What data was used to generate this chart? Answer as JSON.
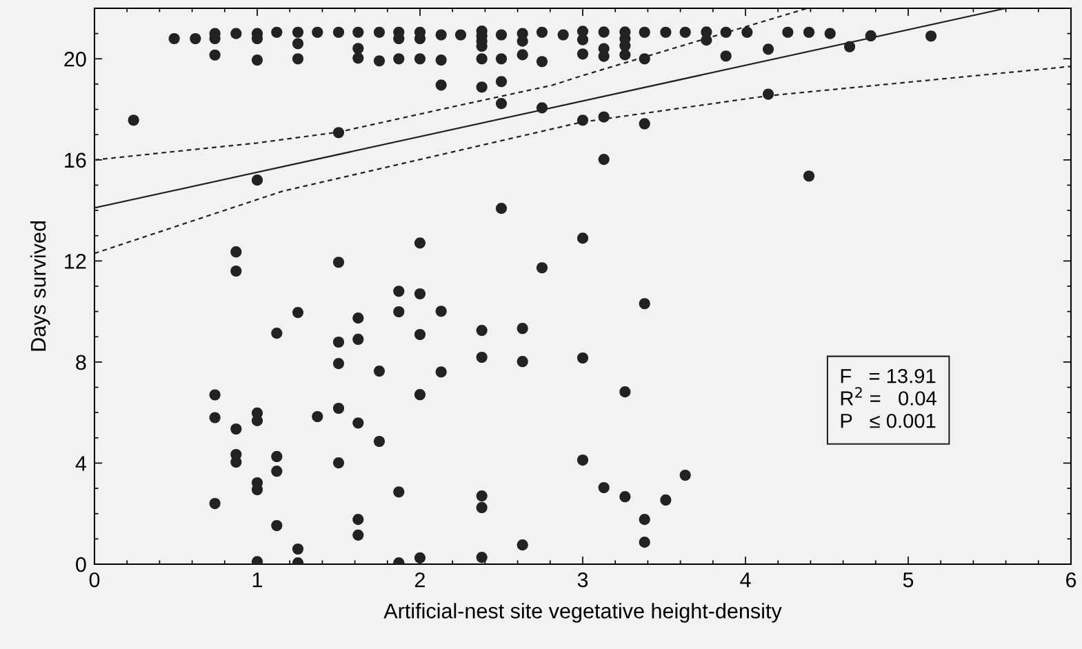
{
  "chart_data": {
    "type": "scatter",
    "xlabel": "Artificial-nest site vegetative height-density",
    "ylabel": "Days survived",
    "xlim": [
      0,
      6
    ],
    "xticks": [
      0,
      1,
      2,
      3,
      4,
      5,
      6
    ],
    "ylim": [
      0,
      22
    ],
    "yticks": [
      0,
      4,
      8,
      12,
      16,
      20
    ],
    "grid": false,
    "annotations": [
      "F   = 13.91",
      "R$^{2}$ =   0.04",
      "P   ≤ 0.001"
    ],
    "series": [
      {
        "marker": "circle",
        "color": "#222222",
        "x": [
          0.24,
          0.49,
          0.62,
          0.74,
          0.74,
          0.74,
          0.74,
          0.74,
          0.74,
          0.87,
          0.87,
          0.87,
          0.87,
          0.87,
          0.87,
          1.0,
          1.0,
          1.0,
          1.0,
          1.0,
          1.0,
          1.0,
          1.0,
          1.0,
          1.12,
          1.12,
          1.12,
          1.12,
          1.12,
          1.25,
          1.25,
          1.25,
          1.25,
          1.25,
          1.25,
          1.37,
          1.37,
          1.5,
          1.5,
          1.5,
          1.5,
          1.5,
          1.5,
          1.5,
          1.62,
          1.62,
          1.62,
          1.62,
          1.62,
          1.62,
          1.62,
          1.62,
          1.75,
          1.75,
          1.75,
          1.75,
          1.87,
          1.87,
          1.87,
          1.87,
          1.87,
          1.87,
          1.87,
          2.0,
          2.0,
          2.0,
          2.0,
          2.0,
          2.0,
          2.0,
          2.0,
          2.13,
          2.13,
          2.13,
          2.13,
          2.13,
          2.25,
          2.38,
          2.38,
          2.38,
          2.38,
          2.38,
          2.38,
          2.38,
          2.38,
          2.38,
          2.38,
          2.38,
          2.5,
          2.5,
          2.5,
          2.5,
          2.5,
          2.63,
          2.63,
          2.63,
          2.63,
          2.63,
          2.63,
          2.75,
          2.75,
          2.75,
          2.75,
          2.88,
          3.0,
          3.0,
          3.0,
          3.0,
          3.0,
          3.0,
          3.0,
          3.13,
          3.13,
          3.13,
          3.13,
          3.13,
          3.13,
          3.26,
          3.26,
          3.26,
          3.26,
          3.26,
          3.26,
          3.38,
          3.38,
          3.38,
          3.38,
          3.38,
          3.38,
          3.51,
          3.51,
          3.63,
          3.63,
          3.76,
          3.76,
          3.88,
          3.88,
          4.01,
          4.14,
          4.14,
          4.26,
          4.39,
          4.39,
          4.52,
          4.64,
          4.77,
          5.14
        ],
        "values": [
          17.57,
          20.8,
          20.8,
          21.0,
          20.8,
          20.15,
          6.7,
          5.8,
          2.4,
          21.0,
          12.36,
          11.6,
          5.35,
          4.34,
          4.04,
          21.0,
          20.8,
          19.95,
          15.2,
          5.98,
          5.68,
          3.22,
          2.95,
          0.1,
          21.05,
          9.14,
          4.26,
          3.68,
          1.53,
          21.05,
          20.6,
          20.0,
          9.96,
          0.6,
          0.05,
          21.05,
          5.84,
          21.05,
          17.08,
          11.95,
          8.79,
          7.94,
          6.17,
          4.01,
          21.05,
          20.41,
          20.03,
          9.74,
          8.9,
          5.59,
          1.77,
          1.15,
          21.05,
          19.92,
          7.64,
          4.86,
          21.05,
          20.8,
          20.0,
          10.8,
          9.99,
          2.86,
          0.05,
          21.05,
          20.8,
          20.0,
          12.71,
          10.7,
          9.09,
          6.71,
          0.25,
          20.95,
          19.95,
          18.96,
          10.01,
          7.61,
          20.95,
          21.1,
          20.9,
          20.7,
          20.5,
          20.0,
          18.88,
          9.25,
          8.19,
          2.7,
          2.24,
          0.27,
          20.95,
          20.0,
          19.1,
          18.23,
          14.08,
          21.0,
          20.7,
          20.16,
          9.33,
          8.02,
          0.76,
          21.05,
          19.89,
          18.06,
          11.73,
          20.95,
          21.09,
          20.76,
          20.19,
          17.57,
          12.9,
          8.16,
          4.12,
          21.06,
          20.4,
          20.1,
          17.7,
          16.02,
          3.03,
          21.06,
          20.79,
          20.52,
          20.16,
          6.82,
          2.67,
          21.05,
          20.0,
          17.43,
          10.31,
          1.77,
          0.87,
          21.05,
          2.54,
          21.05,
          3.52,
          21.06,
          20.74,
          21.05,
          20.11,
          21.05,
          20.38,
          18.6,
          21.05,
          21.05,
          15.36,
          21.0,
          20.48,
          20.91,
          20.9
        ]
      },
      {
        "type": "line",
        "marker": "none",
        "color": "#222222",
        "line_style": "solid",
        "x": [
          0,
          5.6
        ],
        "values": [
          14.1,
          22.0
        ]
      },
      {
        "type": "line",
        "marker": "none",
        "color": "#222222",
        "line_style": "dotted",
        "x": [
          0,
          1,
          1.5,
          2.25,
          2.81,
          3.0,
          4.38
        ],
        "values": [
          16.0,
          16.67,
          17.1,
          18.17,
          18.95,
          19.34,
          22.0
        ]
      },
      {
        "type": "line",
        "marker": "none",
        "color": "#222222",
        "line_style": "dotted",
        "x": [
          0,
          1.15,
          2.99,
          4.13,
          6
        ],
        "values": [
          12.3,
          14.75,
          17.49,
          18.53,
          19.7
        ]
      }
    ]
  }
}
